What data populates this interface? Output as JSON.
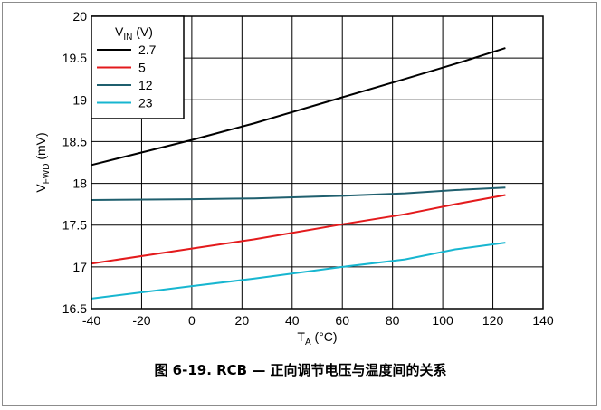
{
  "chart_data": {
    "type": "line",
    "xlabel": "T",
    "xlabel_sub": "A",
    "xlabel_unit": " (°C)",
    "ylabel": "V",
    "ylabel_sub": "FWD",
    "ylabel_unit": " (mV)",
    "xlim": [
      -40,
      140
    ],
    "ylim": [
      16.5,
      20
    ],
    "xticks": [
      -40,
      -20,
      0,
      20,
      40,
      60,
      80,
      100,
      120,
      140
    ],
    "yticks": [
      16.5,
      17,
      17.5,
      18,
      18.5,
      19,
      19.5,
      20
    ],
    "grid": true,
    "legend": {
      "title": "V",
      "title_sub": "IN",
      "title_unit": " (V)",
      "placement": "top-left"
    },
    "series": [
      {
        "name": "2.7",
        "color": "#000000",
        "x": [
          -40,
          0,
          25,
          60,
          85,
          105,
          125
        ],
        "y": [
          18.22,
          18.52,
          18.72,
          19.03,
          19.25,
          19.43,
          19.62
        ]
      },
      {
        "name": "5",
        "color": "#e31a1c",
        "x": [
          -40,
          0,
          25,
          60,
          85,
          105,
          125
        ],
        "y": [
          17.04,
          17.22,
          17.33,
          17.51,
          17.63,
          17.75,
          17.86
        ]
      },
      {
        "name": "12",
        "color": "#1f5f6e",
        "x": [
          -40,
          0,
          25,
          60,
          85,
          105,
          125
        ],
        "y": [
          17.8,
          17.81,
          17.82,
          17.85,
          17.88,
          17.92,
          17.95
        ]
      },
      {
        "name": "23",
        "color": "#17b6d0",
        "x": [
          -40,
          0,
          25,
          60,
          85,
          105,
          125
        ],
        "y": [
          16.62,
          16.77,
          16.86,
          17.0,
          17.09,
          17.21,
          17.29
        ]
      }
    ]
  },
  "caption": "图 6-19. RCB — 正向调节电压与温度间的关系"
}
